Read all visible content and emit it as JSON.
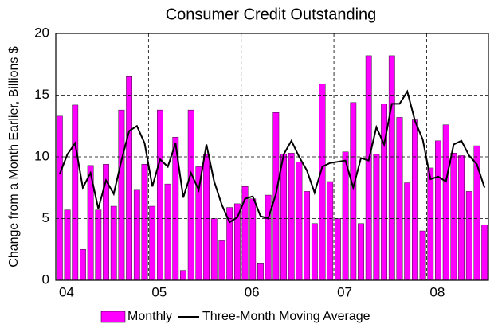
{
  "chart_data": {
    "type": "bar",
    "title": "Consumer Credit Outstanding",
    "y_label": "Change from a Month Earlier, Billions $",
    "categories": [
      "04",
      null,
      null,
      null,
      null,
      null,
      null,
      null,
      null,
      null,
      null,
      null,
      "05",
      null,
      null,
      null,
      null,
      null,
      null,
      null,
      null,
      null,
      null,
      null,
      "06",
      null,
      null,
      null,
      null,
      null,
      null,
      null,
      null,
      null,
      null,
      null,
      "07",
      null,
      null,
      null,
      null,
      null,
      null,
      null,
      null,
      null,
      null,
      null,
      "08",
      null,
      null,
      null,
      null,
      null,
      null,
      null
    ],
    "series": [
      {
        "name": "Monthly",
        "type": "bar",
        "color": "#ff00ff",
        "values": [
          13.3,
          5.7,
          14.2,
          2.5,
          9.3,
          5.7,
          9.4,
          6.0,
          13.8,
          16.5,
          7.3,
          9.4,
          6.0,
          13.8,
          7.8,
          11.6,
          0.8,
          13.8,
          9.2,
          10.2,
          5.0,
          3.2,
          5.9,
          6.2,
          7.6,
          6.6,
          1.4,
          6.9,
          13.6,
          10.2,
          10.3,
          9.6,
          7.2,
          4.6,
          15.9,
          8.0,
          5.0,
          10.4,
          14.4,
          4.6,
          18.2,
          10.2,
          14.3,
          18.2,
          13.2,
          7.9,
          13.0,
          4.0,
          9.1,
          11.3,
          12.6,
          10.3,
          10.1,
          7.2,
          10.9,
          4.5
        ]
      },
      {
        "name": "Three-Month Moving Average",
        "type": "line",
        "color": "#000000",
        "values": [
          8.6,
          10.2,
          11.1,
          7.5,
          8.7,
          5.8,
          8.1,
          7.0,
          9.7,
          12.1,
          12.5,
          11.1,
          7.6,
          9.8,
          9.2,
          11.1,
          6.7,
          8.7,
          7.3,
          11.0,
          8.0,
          6.1,
          4.7,
          5.1,
          6.6,
          6.8,
          5.2,
          5.0,
          7.0,
          10.2,
          11.3,
          10.0,
          8.9,
          7.1,
          9.2,
          9.5,
          9.6,
          9.7,
          7.5,
          9.9,
          9.7,
          12.4,
          11.0,
          14.3,
          14.3,
          15.3,
          12.9,
          11.4,
          8.2,
          8.4,
          8.0,
          11.0,
          11.3,
          10.1,
          9.4,
          7.5
        ]
      }
    ],
    "ylim": [
      0,
      20
    ],
    "yticks": [
      0,
      5,
      10,
      15,
      20
    ],
    "grid": true,
    "legend": "bottom"
  }
}
